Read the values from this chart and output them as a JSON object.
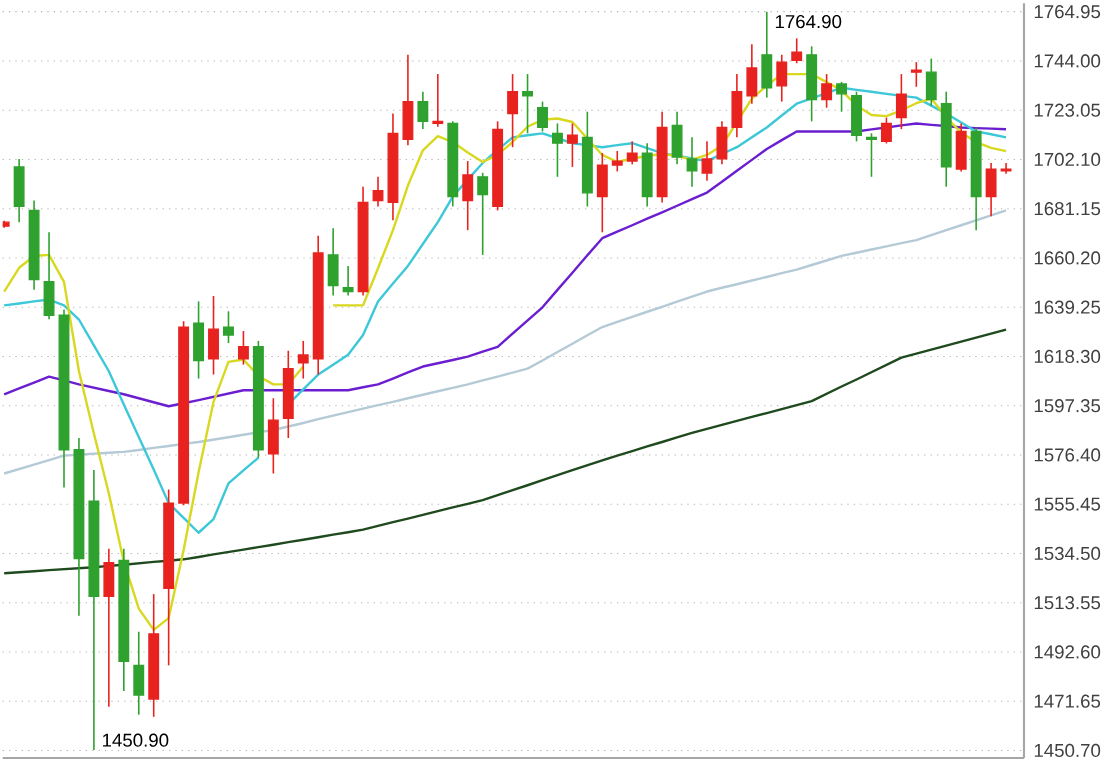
{
  "chart_data": {
    "type": "candlestick",
    "categories": [
      null,
      null,
      null,
      null,
      null,
      null,
      null,
      null,
      null,
      null,
      null,
      null,
      null,
      null,
      null,
      null,
      null,
      null,
      null,
      null,
      null,
      null,
      null,
      null,
      null,
      null,
      null,
      null,
      null,
      null,
      null,
      null,
      null,
      null,
      null,
      null,
      null,
      null,
      null,
      null,
      null,
      null,
      null,
      null,
      null,
      null,
      null,
      null,
      null,
      null,
      null,
      null,
      null,
      null,
      null,
      null,
      null,
      null,
      null,
      null,
      null,
      null,
      null,
      null,
      null,
      null,
      null,
      null
    ],
    "ohlc": [
      [
        1673.7,
        1676.0,
        1673.0,
        1675.4
      ],
      [
        1698.9,
        1702.3,
        1675.4,
        1682.1
      ],
      [
        1680.4,
        1684.6,
        1646.7,
        1651.0
      ],
      [
        1650.1,
        1671.1,
        1634.1,
        1635.8
      ],
      [
        1635.8,
        1638.3,
        1562.6,
        1578.6
      ],
      [
        1578.6,
        1583.6,
        1508.0,
        1532.3
      ],
      [
        1556.7,
        1570.0,
        1450.9,
        1516.3
      ],
      [
        1516.3,
        1536.5,
        1469.3,
        1530.6
      ],
      [
        1531.5,
        1536.5,
        1476.0,
        1488.6
      ],
      [
        1486.9,
        1501.2,
        1465.9,
        1474.3
      ],
      [
        1472.6,
        1517.2,
        1465.0,
        1500.3
      ],
      [
        1519.7,
        1561.7,
        1486.9,
        1555.9
      ],
      [
        1555.9,
        1633.3,
        1555.0,
        1630.7
      ],
      [
        1632.4,
        1641.7,
        1608.9,
        1616.5
      ],
      [
        1617.3,
        1644.0,
        1610.6,
        1629.9
      ],
      [
        1630.7,
        1637.5,
        1624.0,
        1627.4
      ],
      [
        1617.3,
        1629.1,
        1614.8,
        1622.4
      ],
      [
        1622.4,
        1624.9,
        1575.2,
        1578.6
      ],
      [
        1576.9,
        1600.5,
        1568.5,
        1591.2
      ],
      [
        1592.0,
        1620.7,
        1583.6,
        1613.1
      ],
      [
        1615.6,
        1624.9,
        1608.9,
        1618.9
      ],
      [
        1617.3,
        1669.6,
        1610.6,
        1662.3
      ],
      [
        1661.5,
        1672.8,
        1644.2,
        1648.4
      ],
      [
        1647.6,
        1656.8,
        1644.2,
        1645.9
      ],
      [
        1645.9,
        1690.5,
        1644.2,
        1683.8
      ],
      [
        1684.6,
        1694.7,
        1682.1,
        1688.8
      ],
      [
        1683.8,
        1721.6,
        1676.2,
        1713.2
      ],
      [
        1710.6,
        1746.6,
        1708.1,
        1726.7
      ],
      [
        1726.7,
        1730.9,
        1715.0,
        1718.3
      ],
      [
        1717.4,
        1738.4,
        1716.0,
        1718.3
      ],
      [
        1717.4,
        1718.3,
        1682.1,
        1686.3
      ],
      [
        1684.6,
        1701.4,
        1672.0,
        1695.5
      ],
      [
        1694.7,
        1696.4,
        1661.5,
        1687.1
      ],
      [
        1682.1,
        1718.3,
        1680.4,
        1714.9
      ],
      [
        1721.6,
        1738.4,
        1707.3,
        1730.9
      ],
      [
        1730.9,
        1738.4,
        1713.2,
        1729.2
      ],
      [
        1724.1,
        1726.7,
        1714.0,
        1715.7
      ],
      [
        1713.2,
        1717.4,
        1694.7,
        1709.0
      ],
      [
        1709.0,
        1717.4,
        1698.9,
        1712.4
      ],
      [
        1711.5,
        1722.4,
        1682.1,
        1687.9
      ],
      [
        1686.3,
        1704.8,
        1671.1,
        1699.7
      ],
      [
        1699.7,
        1705.7,
        1697.0,
        1701.4
      ],
      [
        1701.4,
        1709.8,
        1700.0,
        1704.8
      ],
      [
        1704.8,
        1709.0,
        1682.1,
        1686.3
      ],
      [
        1686.3,
        1722.4,
        1683.8,
        1715.7
      ],
      [
        1716.6,
        1722.4,
        1700.0,
        1703.1
      ],
      [
        1702.3,
        1711.5,
        1690.5,
        1697.2
      ],
      [
        1696.3,
        1709.8,
        1693.0,
        1702.3
      ],
      [
        1702.3,
        1718.3,
        1700.0,
        1715.7
      ],
      [
        1715.7,
        1738.4,
        1711.5,
        1730.9
      ],
      [
        1729.2,
        1751.1,
        1725.8,
        1741.0
      ],
      [
        1746.6,
        1764.9,
        1728.4,
        1732.6
      ],
      [
        1733.4,
        1746.6,
        1726.7,
        1743.5
      ],
      [
        1744.3,
        1753.6,
        1743.0,
        1747.7
      ],
      [
        1746.6,
        1750.2,
        1718.3,
        1727.5
      ],
      [
        1727.5,
        1738.4,
        1724.1,
        1734.2
      ],
      [
        1734.2,
        1735.1,
        1722.4,
        1730.0
      ],
      [
        1729.2,
        1730.9,
        1709.8,
        1712.4
      ],
      [
        1711.5,
        1713.2,
        1694.7,
        1710.6
      ],
      [
        1709.8,
        1719.9,
        1708.9,
        1717.4
      ],
      [
        1719.9,
        1738.4,
        1715.0,
        1729.9
      ],
      [
        1739.2,
        1743.5,
        1733.0,
        1740.1
      ],
      [
        1739.2,
        1745.0,
        1725.0,
        1727.5
      ],
      [
        1725.8,
        1730.9,
        1690.5,
        1698.9
      ],
      [
        1698.0,
        1717.4,
        1697.0,
        1714.0
      ],
      [
        1714.0,
        1715.7,
        1672.0,
        1686.3
      ],
      [
        1686.3,
        1700.6,
        1677.9,
        1698.0
      ],
      [
        1697.2,
        1700.6,
        1696.0,
        1698.0
      ]
    ],
    "colors": [
      "#e8231f",
      "#2ea12e",
      "#2ea12e",
      "#2ea12e",
      "#2ea12e",
      "#2ea12e",
      "#2ea12e",
      "#e8231f",
      "#2ea12e",
      "#2ea12e",
      "#e8231f",
      "#e8231f",
      "#e8231f",
      "#2ea12e",
      "#e8231f",
      "#2ea12e",
      "#e8231f",
      "#2ea12e",
      "#e8231f",
      "#e8231f",
      "#e8231f",
      "#e8231f",
      "#2ea12e",
      "#2ea12e",
      "#e8231f",
      "#e8231f",
      "#e8231f",
      "#e8231f",
      "#2ea12e",
      "#e8231f",
      "#2ea12e",
      "#e8231f",
      "#2ea12e",
      "#e8231f",
      "#e8231f",
      "#2ea12e",
      "#2ea12e",
      "#2ea12e",
      "#e8231f",
      "#2ea12e",
      "#e8231f",
      "#e8231f",
      "#e8231f",
      "#2ea12e",
      "#e8231f",
      "#2ea12e",
      "#2ea12e",
      "#e8231f",
      "#e8231f",
      "#e8231f",
      "#e8231f",
      "#2ea12e",
      "#e8231f",
      "#e8231f",
      "#2ea12e",
      "#e8231f",
      "#2ea12e",
      "#2ea12e",
      "#2ea12e",
      "#e8231f",
      "#e8231f",
      "#e8231f",
      "#2ea12e",
      "#2ea12e",
      "#e8231f",
      "#2ea12e",
      "#e8231f",
      "#e8231f"
    ],
    "series": [
      {
        "type": "line",
        "color": "#1e4a1e",
        "values": [
          1526.1,
          1526.5,
          1526.9,
          1527.4,
          1527.8,
          1528.2,
          1528.6,
          1529.2,
          1529.7,
          1530.3,
          1530.9,
          1531.4,
          1532.0,
          1533.0,
          1534.1,
          1535.1,
          1536.1,
          1537.2,
          1538.2,
          1539.3,
          1540.3,
          1541.4,
          1542.5,
          1543.5,
          1544.6,
          1546.2,
          1547.8,
          1549.3,
          1550.9,
          1552.5,
          1554.1,
          1555.6,
          1557.2,
          1559.3,
          1561.4,
          1563.5,
          1565.7,
          1567.8,
          1569.9,
          1572.0,
          1574.1,
          1576.1,
          1578.0,
          1580.0,
          1581.9,
          1583.9,
          1585.8,
          1587.5,
          1589.2,
          1590.9,
          1592.6,
          1594.2,
          1595.9,
          1597.6,
          1599.3,
          1602.4,
          1605.5,
          1608.5,
          1611.6,
          1614.7,
          1617.8,
          1619.5,
          1621.2,
          1622.9,
          1624.6,
          1626.3,
          1628.0,
          1629.7
        ]
      },
      {
        "type": "line",
        "color": "#b4cad6",
        "values": [
          1568.5,
          1570.4,
          1572.3,
          1574.2,
          1576.1,
          1576.5,
          1576.9,
          1577.3,
          1577.7,
          1578.5,
          1579.4,
          1580.2,
          1581.1,
          1581.9,
          1582.9,
          1583.9,
          1585.0,
          1586.0,
          1587.0,
          1588.5,
          1590.0,
          1591.6,
          1593.1,
          1594.6,
          1596.1,
          1597.6,
          1599.0,
          1600.5,
          1602.0,
          1603.5,
          1604.9,
          1606.4,
          1608.1,
          1609.7,
          1611.4,
          1613.1,
          1616.6,
          1620.2,
          1623.7,
          1627.3,
          1630.8,
          1633.0,
          1635.1,
          1637.3,
          1639.4,
          1641.6,
          1643.7,
          1645.9,
          1647.5,
          1649.0,
          1650.6,
          1652.1,
          1653.7,
          1655.2,
          1657.2,
          1659.1,
          1661.1,
          1662.4,
          1663.8,
          1665.1,
          1666.5,
          1667.8,
          1669.9,
          1672.0,
          1674.1,
          1676.2,
          1678.3,
          1680.4
        ]
      },
      {
        "type": "line",
        "color": "#6a1ed0",
        "values": [
          1602.2,
          1604.7,
          1607.2,
          1609.7,
          1608.1,
          1606.4,
          1605.0,
          1603.6,
          1602.2,
          1600.5,
          1598.8,
          1597.1,
          1598.4,
          1599.7,
          1601.1,
          1602.5,
          1603.9,
          1603.9,
          1603.9,
          1603.9,
          1603.9,
          1603.9,
          1603.9,
          1603.9,
          1605.2,
          1606.4,
          1608.9,
          1611.5,
          1614.0,
          1615.4,
          1616.8,
          1618.2,
          1620.3,
          1622.4,
          1628.0,
          1633.6,
          1639.2,
          1646.6,
          1653.9,
          1661.3,
          1668.6,
          1671.4,
          1674.1,
          1676.9,
          1679.6,
          1682.4,
          1685.2,
          1688.0,
          1692.6,
          1697.3,
          1701.9,
          1706.5,
          1710.3,
          1714.0,
          1714.0,
          1714.0,
          1714.0,
          1714.0,
          1714.9,
          1715.7,
          1716.6,
          1717.4,
          1716.8,
          1716.3,
          1715.7,
          1715.4,
          1715.2,
          1714.9
        ]
      },
      {
        "type": "line",
        "color": "#3cc8d8",
        "values": [
          1640.0,
          1640.8,
          1641.7,
          1642.5,
          1640.0,
          1634.0,
          1623.0,
          1612.0,
          1597.9,
          1584.0,
          1570.2,
          1555.9,
          1549.6,
          1543.3,
          1549.1,
          1564.3,
          1569.8,
          1575.2,
          null,
          1597.9,
          1604.3,
          1610.6,
          1614.8,
          1619.0,
          1627.4,
          1641.7,
          1649.3,
          1656.8,
          1666.1,
          1675.4,
          1686.3,
          1693.5,
          1700.6,
          1706.1,
          1711.5,
          1712.4,
          1713.2,
          1711.1,
          1709.0,
          1708.2,
          1707.3,
          1708.2,
          1709.0,
          1706.9,
          1704.8,
          1703.7,
          1702.5,
          1701.4,
          1704.4,
          1707.3,
          1711.5,
          1715.7,
          1720.8,
          1725.8,
          1728.1,
          1730.3,
          1732.6,
          1731.7,
          1730.9,
          1730.0,
          1729.2,
          1728.4,
          1725.0,
          1721.6,
          1717.8,
          1714.0,
          1712.8,
          1711.5
        ]
      },
      {
        "type": "line",
        "color": "#d8d820",
        "values": [
          1645.9,
          1656.0,
          1661.0,
          1661.5,
          1650.0,
          1612.0,
          1585.5,
          1560.0,
          1531.0,
          1511.0,
          1502.0,
          1507.0,
          1536.0,
          1569.0,
          1599.0,
          1616.0,
          1617.0,
          1610.0,
          1606.4,
          1606.4,
          1614.0,
          null,
          1640.0,
          1640.0,
          1640.0,
          1655.8,
          1672.0,
          1691.0,
          1706.0,
          1712.0,
          1709.5,
          1705.0,
          1701.0,
          1704.0,
          1709.5,
          1716.0,
          1719.0,
          1719.5,
          1718.0,
          1711.0,
          1704.0,
          1701.0,
          1702.5,
          1703.5,
          1704.5,
          1703.5,
          1702.0,
          1704.0,
          1708.0,
          1718.0,
          1728.0,
          1733.5,
          1738.4,
          1738.4,
          1738.4,
          1735.0,
          1731.5,
          1725.0,
          1721.0,
          1720.5,
          1723.0,
          1726.0,
          1728.0,
          1720.0,
          1713.5,
          1709.5,
          1707.0,
          1705.6
        ]
      }
    ],
    "ylim": [
      1447.5,
      1768.5
    ],
    "yticks": [
      {
        "value": 1450.7,
        "label": "1450.70"
      },
      {
        "value": 1471.65,
        "label": "1471.65"
      },
      {
        "value": 1492.6,
        "label": "1492.60"
      },
      {
        "value": 1513.55,
        "label": "1513.55"
      },
      {
        "value": 1534.5,
        "label": "1534.50"
      },
      {
        "value": 1555.45,
        "label": "1555.45"
      },
      {
        "value": 1576.4,
        "label": "1576.40"
      },
      {
        "value": 1597.35,
        "label": "1597.35"
      },
      {
        "value": 1618.3,
        "label": "1618.30"
      },
      {
        "value": 1639.25,
        "label": "1639.25"
      },
      {
        "value": 1660.2,
        "label": "1660.20"
      },
      {
        "value": 1681.15,
        "label": "1681.15"
      },
      {
        "value": 1702.1,
        "label": "1702.10"
      },
      {
        "value": 1723.05,
        "label": "1723.05"
      },
      {
        "value": 1744.0,
        "label": "1744.00"
      },
      {
        "value": 1764.95,
        "label": "1764.95"
      }
    ],
    "grid": "y",
    "tick_labels": "y",
    "annotations": [
      "1764.90",
      "1450.90"
    ]
  }
}
